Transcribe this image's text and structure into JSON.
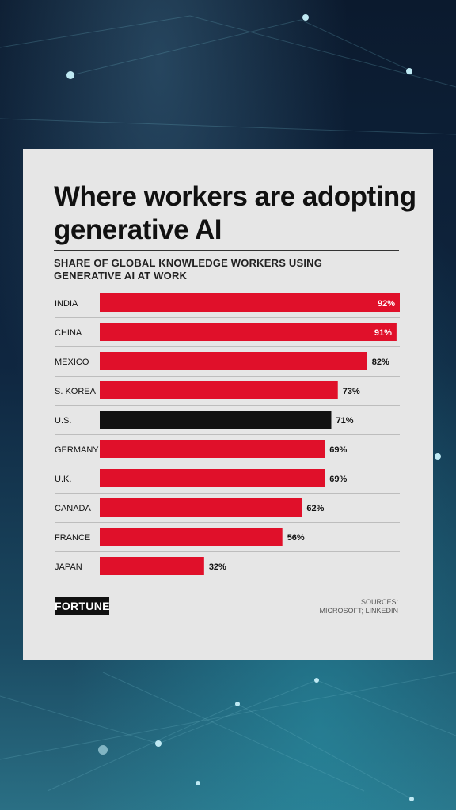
{
  "colors": {
    "bar": "#e0102a",
    "highlight_bar": "#111111",
    "inner_label": "#ffffff",
    "outer_label": "#111111",
    "divider": "#bdbdbd"
  },
  "chart_data": {
    "type": "bar",
    "orientation": "horizontal",
    "title": "Where workers are adopting generative AI",
    "subtitle": "SHARE OF GLOBAL KNOWLEDGE WORKERS USING GENERATIVE AI AT WORK",
    "xlabel": "",
    "ylabel": "",
    "xlim": [
      0,
      92
    ],
    "grid": false,
    "categories": [
      "INDIA",
      "CHINA",
      "MEXICO",
      "S. KOREA",
      "U.S.",
      "GERMANY",
      "U.K.",
      "CANADA",
      "FRANCE",
      "JAPAN"
    ],
    "values": [
      92,
      91,
      82,
      73,
      71,
      69,
      69,
      62,
      56,
      32
    ],
    "value_labels": [
      "92%",
      "91%",
      "82%",
      "73%",
      "71%",
      "69%",
      "69%",
      "62%",
      "56%",
      "32%"
    ],
    "highlight_category": "U.S."
  },
  "footer": {
    "logo_text": "FORTUNE",
    "sources_line1": "SOURCES:",
    "sources_line2": "MICROSOFT; LINKEDIN"
  }
}
